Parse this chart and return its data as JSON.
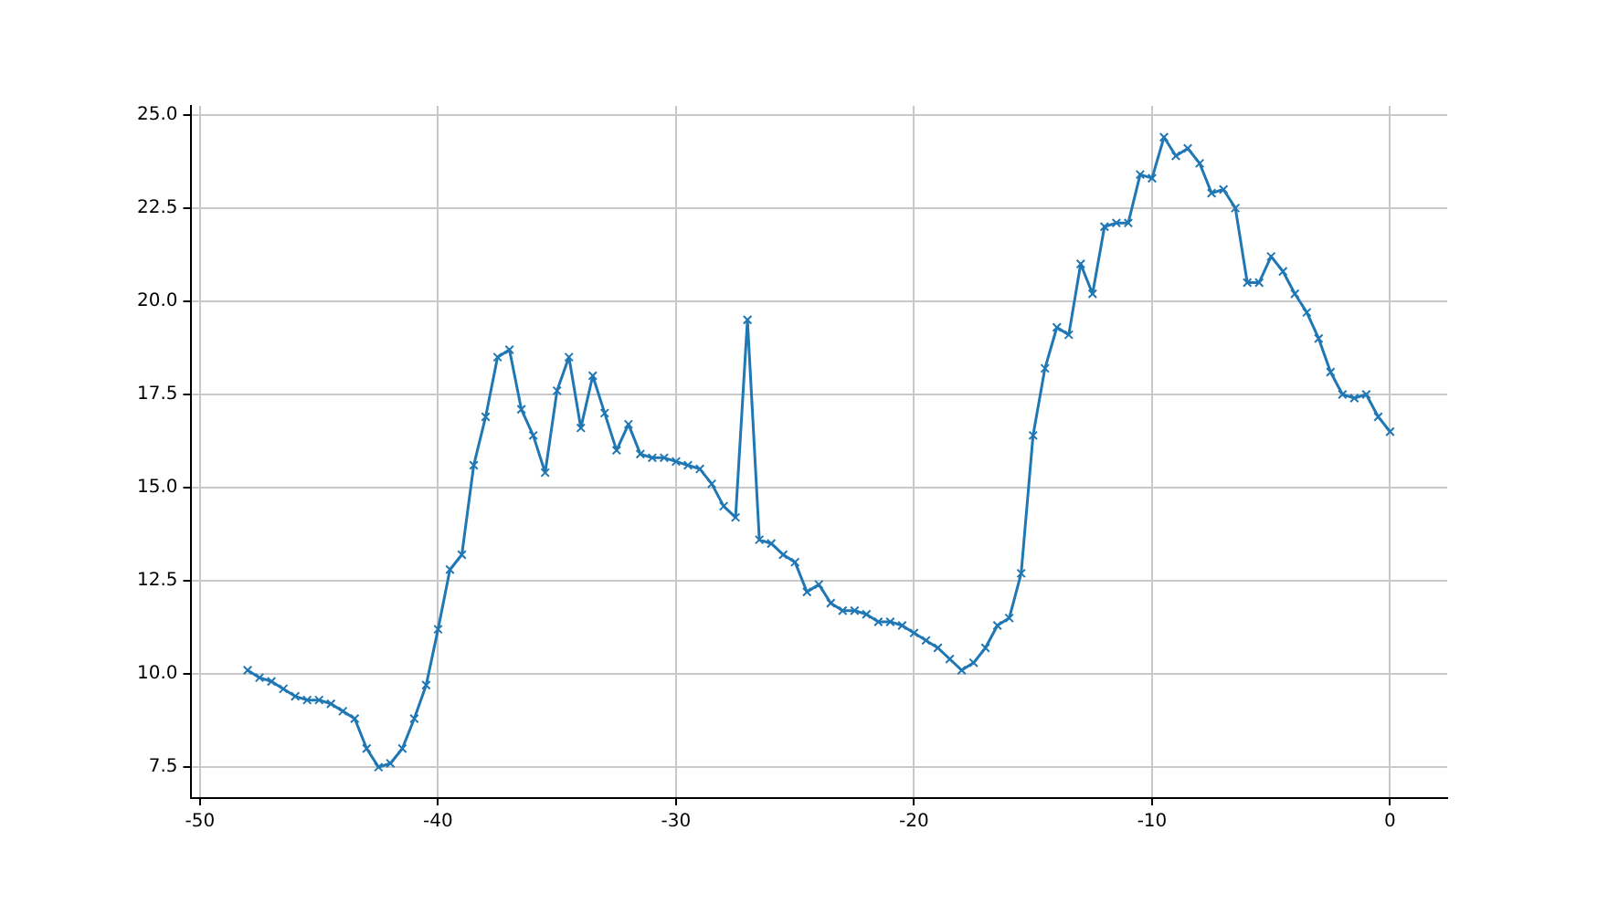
{
  "chart_data": {
    "type": "line",
    "x": [
      -48,
      -47.5,
      -47,
      -46.5,
      -46,
      -45.5,
      -45,
      -44.5,
      -44,
      -43.5,
      -43,
      -42.5,
      -42,
      -41.5,
      -41,
      -40.5,
      -40,
      -39.5,
      -39,
      -38.5,
      -38,
      -37.5,
      -37,
      -36.5,
      -36,
      -35.5,
      -35,
      -34.5,
      -34,
      -33.5,
      -33,
      -32.5,
      -32,
      -31.5,
      -31,
      -30.5,
      -30,
      -29.5,
      -29,
      -28.5,
      -28,
      -27.5,
      -27,
      -26.5,
      -26,
      -25.5,
      -25,
      -24.5,
      -24,
      -23.5,
      -23,
      -22.5,
      -22,
      -21.5,
      -21,
      -20.5,
      -20,
      -19.5,
      -19,
      -18.5,
      -18,
      -17.5,
      -17,
      -16.5,
      -16,
      -15.5,
      -15,
      -14.5,
      -14,
      -13.5,
      -13,
      -12.5,
      -12,
      -11.5,
      -11,
      -10.5,
      -10,
      -9.5,
      -9,
      -8.5,
      -8,
      -7.5,
      -7,
      -6.5,
      -6,
      -5.5,
      -5,
      -4.5,
      -4,
      -3.5,
      -3,
      -2.5,
      -2,
      -1.5,
      -1,
      -0.5,
      0
    ],
    "series": [
      {
        "color": "#1f77b4",
        "values": [
          10.1,
          9.9,
          9.8,
          9.6,
          9.4,
          9.3,
          9.3,
          9.2,
          9.0,
          8.8,
          8.0,
          7.5,
          7.6,
          8.0,
          8.8,
          9.7,
          11.2,
          12.8,
          13.2,
          15.6,
          16.9,
          18.5,
          18.7,
          17.1,
          16.4,
          15.4,
          17.6,
          18.5,
          16.6,
          18.0,
          17.0,
          16.0,
          16.7,
          15.9,
          15.8,
          15.8,
          15.7,
          15.6,
          15.5,
          15.1,
          14.5,
          14.2,
          19.5,
          13.6,
          13.5,
          13.2,
          13.0,
          12.2,
          12.4,
          11.9,
          11.7,
          11.7,
          11.6,
          11.4,
          11.4,
          11.3,
          11.1,
          10.9,
          10.7,
          10.4,
          10.1,
          10.3,
          10.7,
          11.3,
          11.5,
          12.7,
          16.4,
          18.2,
          19.3,
          19.1,
          21.0,
          20.2,
          22.0,
          22.1,
          22.1,
          23.4,
          23.3,
          24.4,
          23.9,
          24.1,
          23.7,
          22.9,
          23.0,
          22.5,
          20.5,
          20.5,
          21.2,
          20.8,
          20.2,
          19.7,
          19.0,
          18.1,
          17.5,
          17.4,
          17.5,
          16.9,
          16.5
        ]
      }
    ],
    "xlim": [
      -50.4,
      2.4
    ],
    "xticks": [
      -50,
      -40,
      -30,
      -20,
      -10,
      0
    ],
    "ylim": [
      6.67,
      25.24
    ],
    "yticks": [
      {
        "value": 7.5,
        "label": "7.5"
      },
      {
        "value": 10,
        "label": "10.0"
      },
      {
        "value": 12.5,
        "label": "12.5"
      },
      {
        "value": 15,
        "label": "15.0"
      },
      {
        "value": 17.5,
        "label": "17.5"
      },
      {
        "value": 20,
        "label": "20.0"
      },
      {
        "value": 22.5,
        "label": "22.5"
      },
      {
        "value": 25,
        "label": "25.0"
      }
    ],
    "grid": true,
    "legend": false,
    "marker": "cross",
    "line_style": "solid"
  }
}
